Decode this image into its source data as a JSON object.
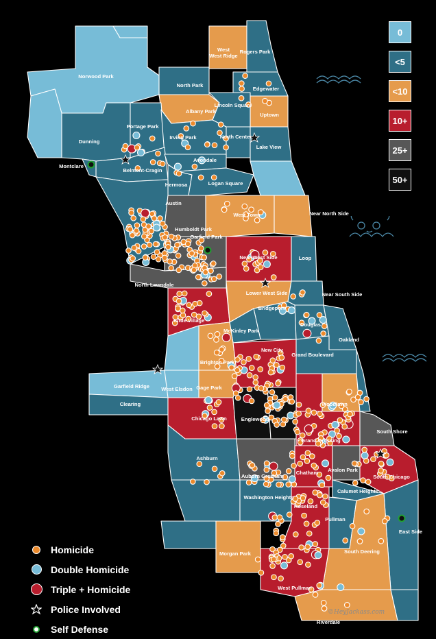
{
  "colors": {
    "zero": "#77bcd7",
    "lt5": "#2f6f86",
    "lt10": "#e59b4c",
    "ten_plus": "#b81d2d",
    "twentyfive_plus": "#575757",
    "fifty_plus": "#101010",
    "homicide": "#ec8a2c",
    "double": "#77bcd7",
    "triple": "#b81d2d",
    "self_defense": "#22a133"
  },
  "scale": [
    {
      "label": "0",
      "color": "zero"
    },
    {
      "label": "<5",
      "color": "lt5"
    },
    {
      "label": "<10",
      "color": "lt10"
    },
    {
      "label": "10+",
      "color": "ten_plus"
    },
    {
      "label": "25+",
      "color": "twentyfive_plus"
    },
    {
      "label": "50+",
      "color": "fifty_plus"
    }
  ],
  "legend": [
    {
      "label": "Homicide",
      "symbol": "homicide-dot"
    },
    {
      "label": "Double Homicide",
      "symbol": "double-dot"
    },
    {
      "label": "Triple + Homicide",
      "symbol": "triple-dot"
    },
    {
      "label": "Police Involved",
      "symbol": "star-icon"
    },
    {
      "label": "Self Defense",
      "symbol": "ring-icon"
    }
  ],
  "neighborhoods": {
    "norwood_park": "Norwood Park",
    "west_ridge": "West Ridge",
    "rogers_park": "Rogers Park",
    "north_park": "North Park",
    "edgewater": "Edgewater",
    "albany_park": "Albany Park",
    "lincoln_square": "Lincoln Square",
    "uptown": "Uptown",
    "portage_park": "Portage Park",
    "irving_park": "Irving Park",
    "north_center": "North Center",
    "lake_view": "Lake View",
    "dunning": "Dunning",
    "avondale": "Avondale",
    "montclare": "Montclare",
    "belmont_cragin": "Belmont-Cragin",
    "hermosa": "Hermosa",
    "logan_square": "Logan Square",
    "austin": "Austin",
    "west_town": "West Town",
    "near_north_side": "Near North Side",
    "humboldt_park": "Humboldt Park",
    "garfield_park": "Garfield Park",
    "near_west_side": "Near West Side",
    "loop": "Loop",
    "north_lawndale": "North Lawndale",
    "lower_west_side": "Lower West Side",
    "near_south_side": "Near South Side",
    "bridgeport": "Bridgeport",
    "little_village": "Little Village",
    "douglas": "Douglas",
    "mckinley_park": "McKinley Park",
    "oakland": "Oakland",
    "new_city": "New City",
    "brighton_park": "Brighton Park",
    "grand_boulevard": "Grand Boulevard",
    "garfield_ridge": "Garfield Ridge",
    "west_elsdon": "West Elsdon",
    "gage_park": "Gage Park",
    "clearing": "Clearing",
    "woodlawn": "Woodlawn",
    "chicago_lawn": "Chicago Lawn",
    "englewood": "Englewood",
    "south_shore": "South Shore",
    "greater_grand_crossing": "Grand Crossing",
    "ashburn": "Ashburn",
    "avalon_park": "Avalon Park",
    "south_chicago": "South Chicago",
    "auburn_gresham": "Auburn Gresham",
    "chatham": "Chatham",
    "calumet_heights": "Calumet Heights",
    "washington_heights": "Washington Heights",
    "roseland": "Roseland",
    "pullman": "Pullman",
    "east_side": "East Side",
    "south_deering": "South Deering",
    "morgan_park": "Morgan Park",
    "west_pullman": "West Pullman",
    "riverdale": "Riverdale"
  },
  "credit": "©HeyJackass.com"
}
